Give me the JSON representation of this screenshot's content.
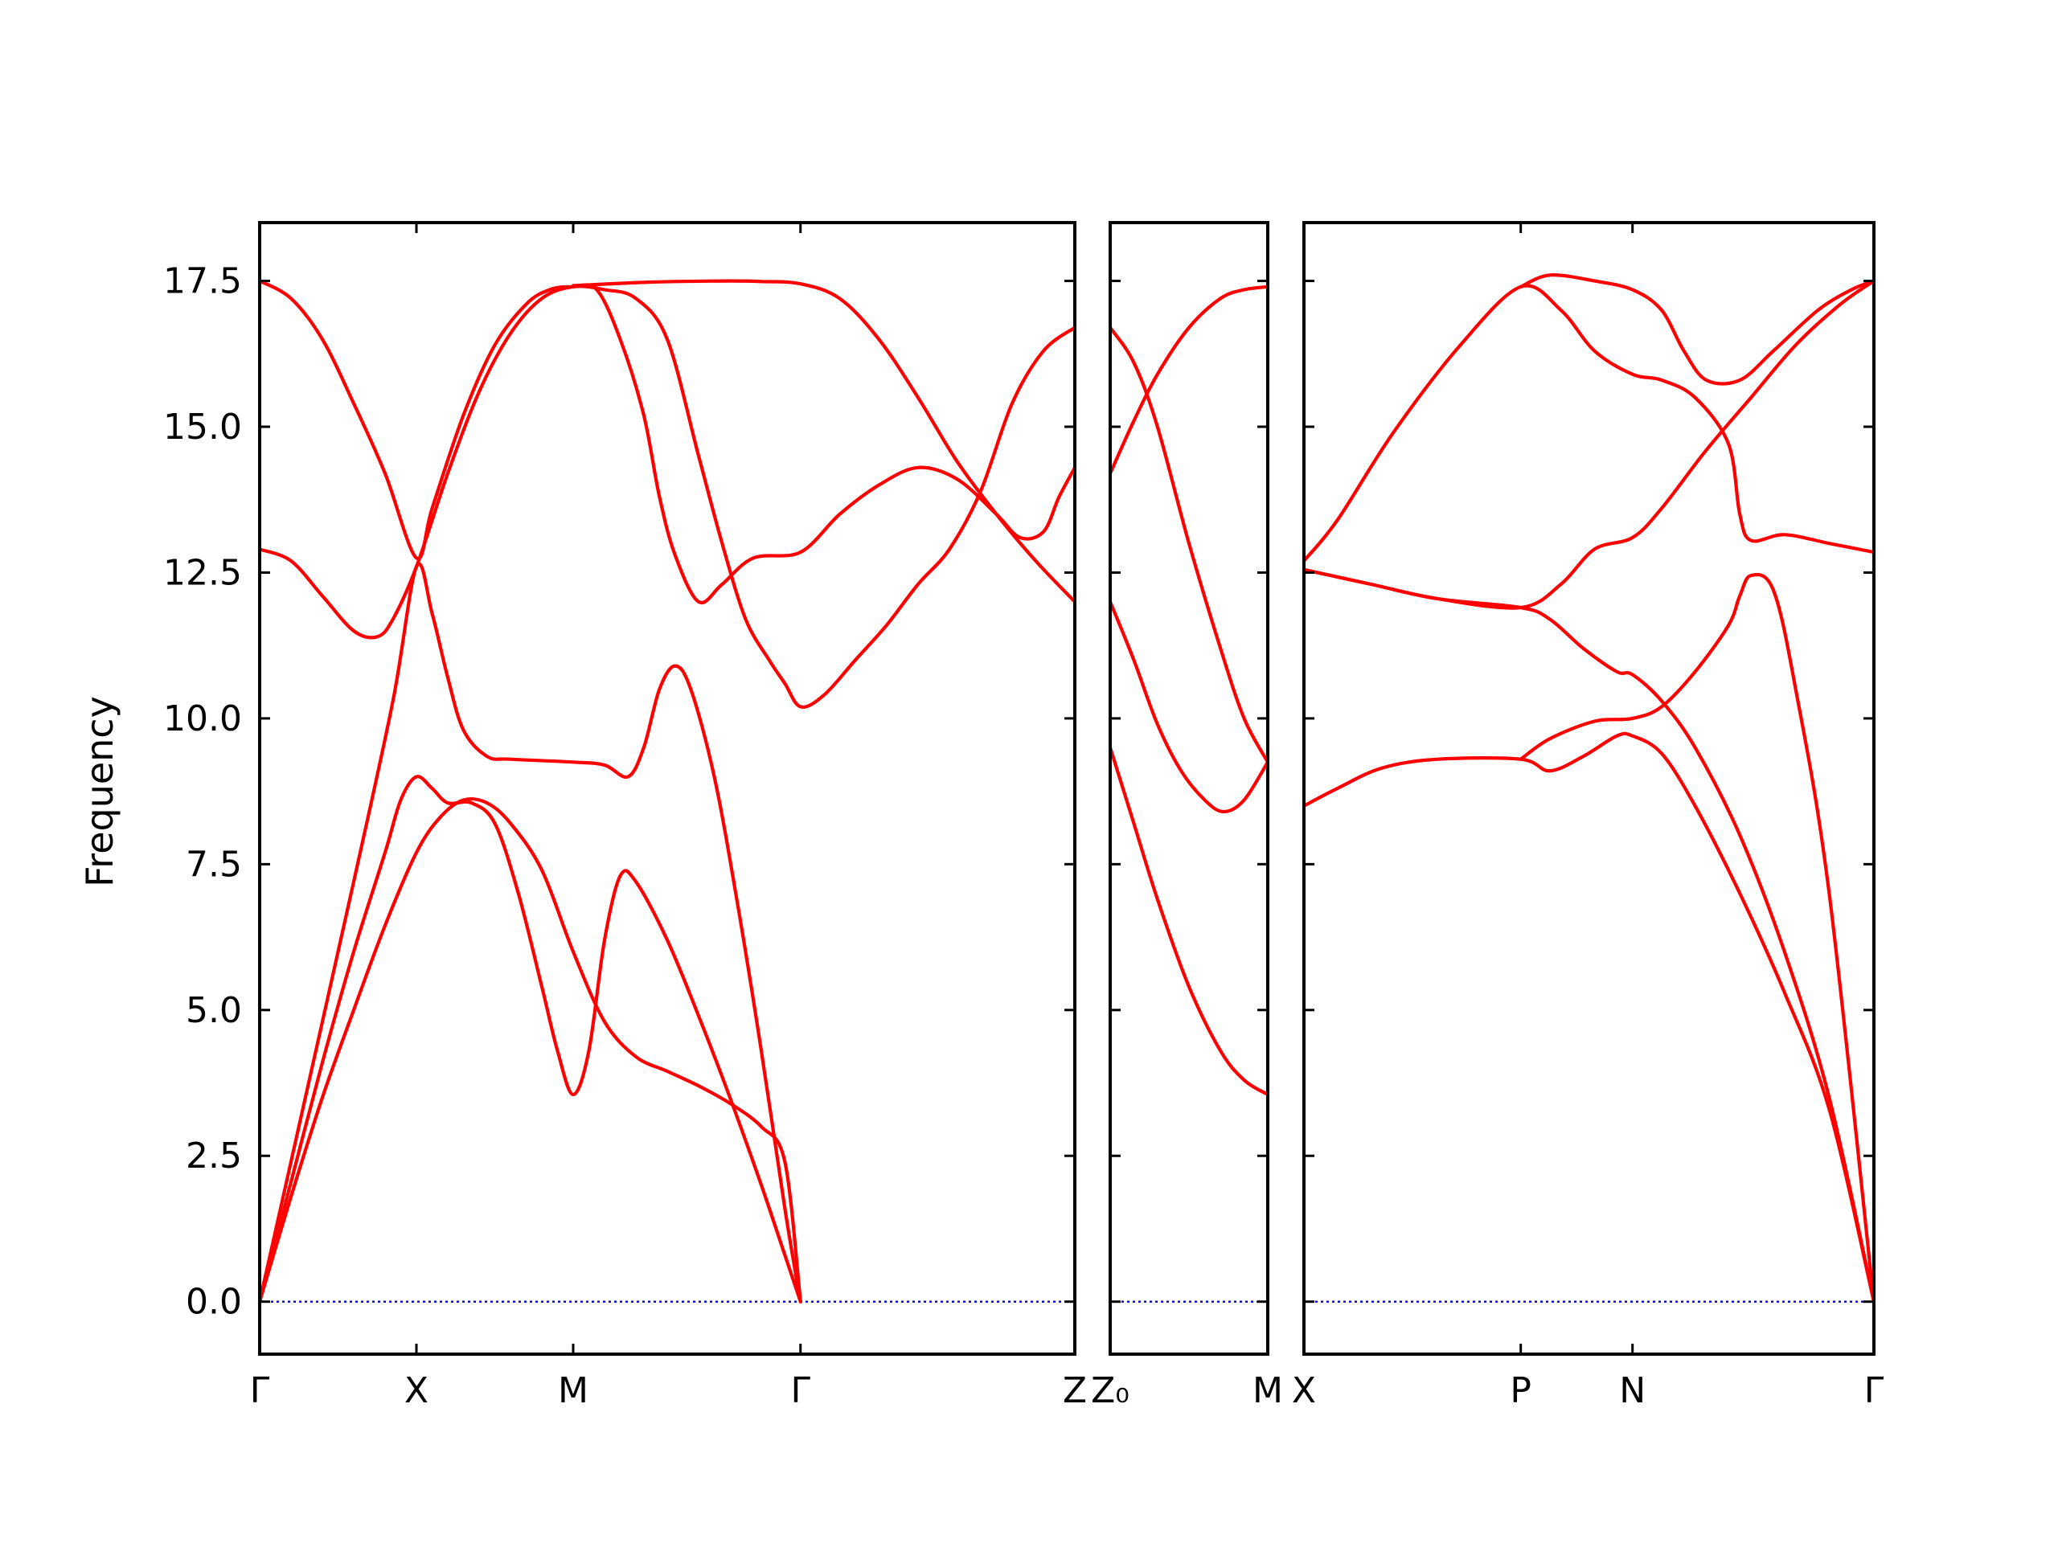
{
  "chart_data": {
    "type": "line",
    "title": "",
    "ylabel": "Frequency",
    "ylim": [
      -0.9,
      18.5
    ],
    "yticks": [
      0.0,
      2.5,
      5.0,
      7.5,
      10.0,
      12.5,
      15.0,
      17.5
    ],
    "ytick_labels": [
      "0.0",
      "2.5",
      "5.0",
      "7.5",
      "10.0",
      "12.5",
      "15.0",
      "17.5"
    ],
    "grid": false,
    "colors": {
      "bands": "#ff0000",
      "zero_line": "#0000cc",
      "frame": "#000000"
    },
    "panels": [
      {
        "name": "panel-1",
        "xlim": [
          0,
          5.2
        ],
        "ticks": [
          {
            "x": 0,
            "label": "Γ"
          },
          {
            "x": 1,
            "label": "X"
          },
          {
            "x": 2,
            "label": "M"
          },
          {
            "x": 3.45,
            "label": "Γ"
          },
          {
            "x": 5.2,
            "label": "Z"
          }
        ],
        "bands": [
          [
            [
              0,
              0
            ],
            [
              0.2,
              1.8
            ],
            [
              0.4,
              3.5
            ],
            [
              0.6,
              5.0
            ],
            [
              0.8,
              6.45
            ],
            [
              1,
              7.7
            ],
            [
              1.15,
              8.3
            ],
            [
              1.3,
              8.6
            ],
            [
              1.45,
              8.55
            ],
            [
              1.6,
              8.2
            ],
            [
              1.8,
              7.4
            ],
            [
              2.0,
              6.0
            ],
            [
              2.2,
              4.8
            ],
            [
              2.4,
              4.2
            ],
            [
              2.6,
              3.95
            ],
            [
              2.8,
              3.7
            ],
            [
              3.0,
              3.4
            ],
            [
              3.2,
              3.0
            ],
            [
              3.35,
              2.4
            ],
            [
              3.45,
              0
            ]
          ],
          [
            [
              0,
              0
            ],
            [
              0.2,
              2.05
            ],
            [
              0.4,
              4.1
            ],
            [
              0.6,
              6.0
            ],
            [
              0.8,
              7.7
            ],
            [
              0.9,
              8.6
            ],
            [
              1,
              9.0
            ],
            [
              1.1,
              8.8
            ],
            [
              1.2,
              8.55
            ],
            [
              1.35,
              8.55
            ],
            [
              1.5,
              8.2
            ],
            [
              1.65,
              7.0
            ],
            [
              1.8,
              5.4
            ],
            [
              1.9,
              4.3
            ],
            [
              2.0,
              3.55
            ],
            [
              2.1,
              4.3
            ],
            [
              2.2,
              6.2
            ],
            [
              2.3,
              7.3
            ],
            [
              2.4,
              7.2
            ],
            [
              2.6,
              6.2
            ],
            [
              2.8,
              4.9
            ],
            [
              3.0,
              3.5
            ],
            [
              3.2,
              2.0
            ],
            [
              3.35,
              0.8
            ],
            [
              3.45,
              0
            ]
          ],
          [
            [
              0,
              0
            ],
            [
              0.3,
              3.6
            ],
            [
              0.6,
              7.2
            ],
            [
              0.85,
              10.3
            ],
            [
              1,
              12.6
            ],
            [
              1.1,
              11.8
            ],
            [
              1.2,
              10.7
            ],
            [
              1.3,
              9.8
            ],
            [
              1.45,
              9.35
            ],
            [
              1.6,
              9.3
            ],
            [
              2.0,
              9.25
            ],
            [
              2.2,
              9.2
            ],
            [
              2.35,
              9.0
            ],
            [
              2.45,
              9.5
            ],
            [
              2.55,
              10.5
            ],
            [
              2.65,
              10.9
            ],
            [
              2.75,
              10.5
            ],
            [
              2.9,
              9.0
            ],
            [
              3.05,
              6.8
            ],
            [
              3.2,
              4.3
            ],
            [
              3.35,
              1.6
            ],
            [
              3.45,
              0
            ]
          ],
          [
            [
              0,
              12.9
            ],
            [
              0.2,
              12.7
            ],
            [
              0.4,
              12.1
            ],
            [
              0.6,
              11.5
            ],
            [
              0.75,
              11.4
            ],
            [
              0.85,
              11.7
            ],
            [
              1,
              12.6
            ],
            [
              1.2,
              14.2
            ],
            [
              1.4,
              15.6
            ],
            [
              1.6,
              16.6
            ],
            [
              1.8,
              17.2
            ],
            [
              2.0,
              17.4
            ],
            [
              2.2,
              17.35
            ],
            [
              2.4,
              17.2
            ],
            [
              2.6,
              16.5
            ],
            [
              2.8,
              14.5
            ],
            [
              2.95,
              13.0
            ],
            [
              3.1,
              11.7
            ],
            [
              3.25,
              11.0
            ],
            [
              3.35,
              10.6
            ],
            [
              3.45,
              10.2
            ],
            [
              3.6,
              10.4
            ],
            [
              3.8,
              11.0
            ],
            [
              4.0,
              11.6
            ],
            [
              4.2,
              12.3
            ],
            [
              4.4,
              12.9
            ],
            [
              4.6,
              13.9
            ],
            [
              4.8,
              15.4
            ],
            [
              5.0,
              16.3
            ],
            [
              5.2,
              16.7
            ]
          ],
          [
            [
              0,
              17.5
            ],
            [
              0.2,
              17.2
            ],
            [
              0.4,
              16.5
            ],
            [
              0.6,
              15.4
            ],
            [
              0.8,
              14.2
            ],
            [
              1,
              12.75
            ],
            [
              1.1,
              13.6
            ],
            [
              1.3,
              15.2
            ],
            [
              1.5,
              16.4
            ],
            [
              1.7,
              17.1
            ],
            [
              1.85,
              17.35
            ],
            [
              2,
              17.4
            ],
            [
              2.15,
              17.35
            ],
            [
              2.3,
              16.5
            ],
            [
              2.45,
              15.2
            ],
            [
              2.55,
              13.8
            ],
            [
              2.65,
              12.8
            ],
            [
              2.8,
              12.0
            ],
            [
              2.95,
              12.3
            ],
            [
              3.15,
              12.75
            ],
            [
              3.45,
              12.85
            ],
            [
              3.7,
              13.5
            ],
            [
              3.95,
              14.0
            ],
            [
              4.2,
              14.3
            ],
            [
              4.45,
              14.1
            ],
            [
              4.7,
              13.5
            ],
            [
              4.85,
              13.1
            ],
            [
              5.0,
              13.2
            ],
            [
              5.1,
              13.8
            ],
            [
              5.2,
              14.3
            ]
          ],
          [
            [
              2,
              17.42
            ],
            [
              2.5,
              17.48
            ],
            [
              3.0,
              17.5
            ],
            [
              3.2,
              17.49
            ],
            [
              3.45,
              17.45
            ],
            [
              3.7,
              17.2
            ],
            [
              3.95,
              16.5
            ],
            [
              4.2,
              15.5
            ],
            [
              4.45,
              14.4
            ],
            [
              4.7,
              13.5
            ],
            [
              4.95,
              12.7
            ],
            [
              5.2,
              12.0
            ]
          ]
        ]
      },
      {
        "name": "panel-2",
        "xlim": [
          0,
          1
        ],
        "ticks": [
          {
            "x": 0,
            "label": "Z₀"
          },
          {
            "x": 1,
            "label": "M"
          }
        ],
        "bands": [
          [
            [
              0,
              9.5
            ],
            [
              0.15,
              8.2
            ],
            [
              0.3,
              6.9
            ],
            [
              0.5,
              5.4
            ],
            [
              0.7,
              4.3
            ],
            [
              0.85,
              3.8
            ],
            [
              1,
              3.55
            ]
          ],
          [
            [
              0,
              12.0
            ],
            [
              0.15,
              11.0
            ],
            [
              0.3,
              9.9
            ],
            [
              0.45,
              9.1
            ],
            [
              0.6,
              8.6
            ],
            [
              0.72,
              8.4
            ],
            [
              0.85,
              8.6
            ],
            [
              1,
              9.25
            ]
          ],
          [
            [
              0,
              14.2
            ],
            [
              0.15,
              15.1
            ],
            [
              0.3,
              15.9
            ],
            [
              0.5,
              16.7
            ],
            [
              0.7,
              17.2
            ],
            [
              0.85,
              17.35
            ],
            [
              1,
              17.4
            ]
          ],
          [
            [
              0,
              16.7
            ],
            [
              0.15,
              16.1
            ],
            [
              0.3,
              15.0
            ],
            [
              0.5,
              13.0
            ],
            [
              0.7,
              11.2
            ],
            [
              0.85,
              10.0
            ],
            [
              1,
              9.25
            ]
          ]
        ]
      },
      {
        "name": "panel-3",
        "xlim": [
          0,
          2.55
        ],
        "ticks": [
          {
            "x": 0,
            "label": "X"
          },
          {
            "x": 0.97,
            "label": "P"
          },
          {
            "x": 1.47,
            "label": "N"
          },
          {
            "x": 2.55,
            "label": "Γ"
          }
        ],
        "bands": [
          [
            [
              0,
              8.5
            ],
            [
              0.15,
              8.8
            ],
            [
              0.35,
              9.15
            ],
            [
              0.6,
              9.3
            ],
            [
              0.97,
              9.3
            ],
            [
              1.1,
              9.1
            ],
            [
              1.25,
              9.35
            ],
            [
              1.4,
              9.7
            ],
            [
              1.47,
              9.7
            ],
            [
              1.6,
              9.4
            ],
            [
              1.75,
              8.5
            ],
            [
              1.95,
              7.0
            ],
            [
              2.15,
              5.3
            ],
            [
              2.35,
              3.3
            ],
            [
              2.55,
              0
            ]
          ],
          [
            [
              0,
              12.55
            ],
            [
              0.3,
              12.3
            ],
            [
              0.6,
              12.05
            ],
            [
              0.97,
              11.9
            ],
            [
              1.1,
              11.7
            ],
            [
              1.25,
              11.2
            ],
            [
              1.4,
              10.8
            ],
            [
              1.47,
              10.75
            ],
            [
              1.6,
              10.3
            ],
            [
              1.75,
              9.5
            ],
            [
              1.95,
              8.0
            ],
            [
              2.15,
              6.0
            ],
            [
              2.35,
              3.5
            ],
            [
              2.55,
              0
            ]
          ],
          [
            [
              0.97,
              9.3
            ],
            [
              1.1,
              9.65
            ],
            [
              1.3,
              9.95
            ],
            [
              1.47,
              10.0
            ],
            [
              1.6,
              10.2
            ],
            [
              1.75,
              10.8
            ],
            [
              1.9,
              11.6
            ],
            [
              1.95,
              12.1
            ],
            [
              2.0,
              12.45
            ],
            [
              2.1,
              12.2
            ],
            [
              2.2,
              10.5
            ],
            [
              2.35,
              7.0
            ],
            [
              2.55,
              0
            ]
          ],
          [
            [
              0,
              12.55
            ],
            [
              0.3,
              12.3
            ],
            [
              0.6,
              12.05
            ],
            [
              0.97,
              11.9
            ],
            [
              1.15,
              12.3
            ],
            [
              1.3,
              12.9
            ],
            [
              1.47,
              13.1
            ],
            [
              1.6,
              13.6
            ],
            [
              1.8,
              14.6
            ],
            [
              2.0,
              15.5
            ],
            [
              2.2,
              16.4
            ],
            [
              2.4,
              17.1
            ],
            [
              2.55,
              17.5
            ]
          ],
          [
            [
              0,
              12.7
            ],
            [
              0.15,
              13.4
            ],
            [
              0.4,
              14.9
            ],
            [
              0.7,
              16.4
            ],
            [
              0.97,
              17.4
            ],
            [
              1.15,
              17.0
            ],
            [
              1.3,
              16.3
            ],
            [
              1.47,
              15.9
            ],
            [
              1.6,
              15.8
            ],
            [
              1.75,
              15.5
            ],
            [
              1.9,
              14.7
            ],
            [
              1.95,
              13.5
            ],
            [
              2.0,
              13.05
            ],
            [
              2.15,
              13.15
            ],
            [
              2.35,
              13.0
            ],
            [
              2.55,
              12.85
            ]
          ],
          [
            [
              0.97,
              17.4
            ],
            [
              1.1,
              17.6
            ],
            [
              1.3,
              17.5
            ],
            [
              1.47,
              17.35
            ],
            [
              1.6,
              17.0
            ],
            [
              1.7,
              16.3
            ],
            [
              1.8,
              15.8
            ],
            [
              1.95,
              15.8
            ],
            [
              2.1,
              16.3
            ],
            [
              2.3,
              17.0
            ],
            [
              2.45,
              17.35
            ],
            [
              2.55,
              17.5
            ]
          ]
        ]
      }
    ]
  }
}
